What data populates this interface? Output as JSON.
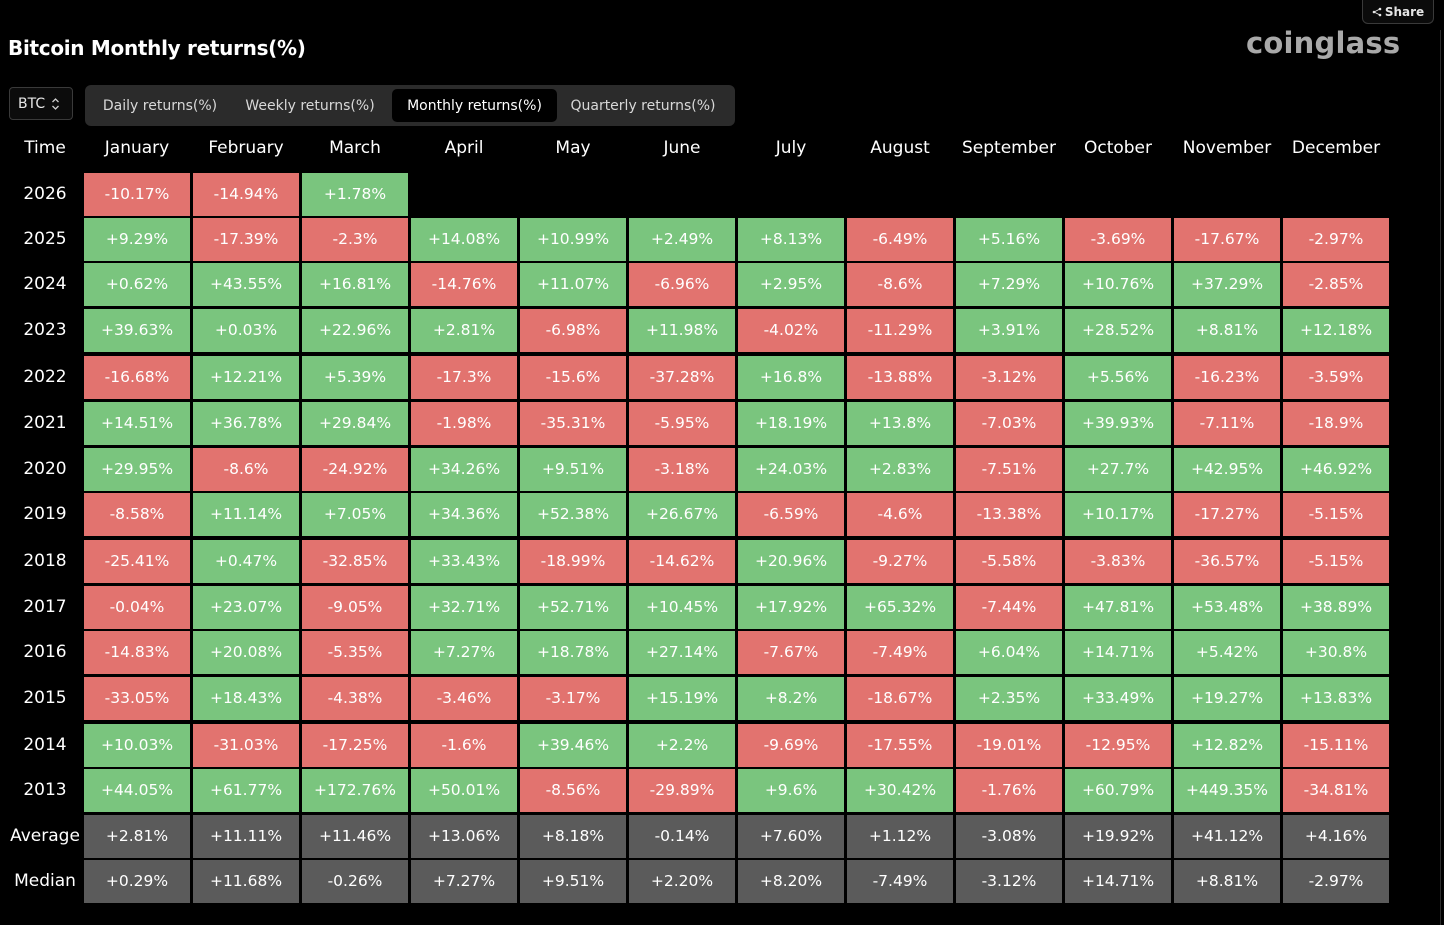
{
  "header": {
    "title": "Bitcoin Monthly returns(%)",
    "brand": "coinglass",
    "share_label": "Share"
  },
  "asset_select": {
    "value": "BTC"
  },
  "tabs": [
    {
      "label": "Daily returns(%)",
      "active": false
    },
    {
      "label": "Weekly returns(%)",
      "active": false
    },
    {
      "label": "Monthly returns(%)",
      "active": true
    },
    {
      "label": "Quarterly returns(%)",
      "active": false
    }
  ],
  "colors": {
    "positive": "#7ac57e",
    "negative": "#e2736f",
    "stat": "#5b5b5b",
    "background": "#000000"
  },
  "table": {
    "time_header": "Time",
    "months": [
      "January",
      "February",
      "March",
      "April",
      "May",
      "June",
      "July",
      "August",
      "September",
      "October",
      "November",
      "December"
    ],
    "rows": [
      {
        "label": "2026",
        "values": [
          "-10.17%",
          "-14.94%",
          "+1.78%",
          "",
          "",
          "",
          "",
          "",
          "",
          "",
          "",
          ""
        ]
      },
      {
        "label": "2025",
        "values": [
          "+9.29%",
          "-17.39%",
          "-2.3%",
          "+14.08%",
          "+10.99%",
          "+2.49%",
          "+8.13%",
          "-6.49%",
          "+5.16%",
          "-3.69%",
          "-17.67%",
          "-2.97%"
        ]
      },
      {
        "label": "2024",
        "values": [
          "+0.62%",
          "+43.55%",
          "+16.81%",
          "-14.76%",
          "+11.07%",
          "-6.96%",
          "+2.95%",
          "-8.6%",
          "+7.29%",
          "+10.76%",
          "+37.29%",
          "-2.85%"
        ]
      },
      {
        "label": "2023",
        "values": [
          "+39.63%",
          "+0.03%",
          "+22.96%",
          "+2.81%",
          "-6.98%",
          "+11.98%",
          "-4.02%",
          "-11.29%",
          "+3.91%",
          "+28.52%",
          "+8.81%",
          "+12.18%"
        ]
      },
      {
        "label": "2022",
        "values": [
          "-16.68%",
          "+12.21%",
          "+5.39%",
          "-17.3%",
          "-15.6%",
          "-37.28%",
          "+16.8%",
          "-13.88%",
          "-3.12%",
          "+5.56%",
          "-16.23%",
          "-3.59%"
        ]
      },
      {
        "label": "2021",
        "values": [
          "+14.51%",
          "+36.78%",
          "+29.84%",
          "-1.98%",
          "-35.31%",
          "-5.95%",
          "+18.19%",
          "+13.8%",
          "-7.03%",
          "+39.93%",
          "-7.11%",
          "-18.9%"
        ]
      },
      {
        "label": "2020",
        "values": [
          "+29.95%",
          "-8.6%",
          "-24.92%",
          "+34.26%",
          "+9.51%",
          "-3.18%",
          "+24.03%",
          "+2.83%",
          "-7.51%",
          "+27.7%",
          "+42.95%",
          "+46.92%"
        ]
      },
      {
        "label": "2019",
        "values": [
          "-8.58%",
          "+11.14%",
          "+7.05%",
          "+34.36%",
          "+52.38%",
          "+26.67%",
          "-6.59%",
          "-4.6%",
          "-13.38%",
          "+10.17%",
          "-17.27%",
          "-5.15%"
        ]
      },
      {
        "label": "2018",
        "values": [
          "-25.41%",
          "+0.47%",
          "-32.85%",
          "+33.43%",
          "-18.99%",
          "-14.62%",
          "+20.96%",
          "-9.27%",
          "-5.58%",
          "-3.83%",
          "-36.57%",
          "-5.15%"
        ]
      },
      {
        "label": "2017",
        "values": [
          "-0.04%",
          "+23.07%",
          "-9.05%",
          "+32.71%",
          "+52.71%",
          "+10.45%",
          "+17.92%",
          "+65.32%",
          "-7.44%",
          "+47.81%",
          "+53.48%",
          "+38.89%"
        ]
      },
      {
        "label": "2016",
        "values": [
          "-14.83%",
          "+20.08%",
          "-5.35%",
          "+7.27%",
          "+18.78%",
          "+27.14%",
          "-7.67%",
          "-7.49%",
          "+6.04%",
          "+14.71%",
          "+5.42%",
          "+30.8%"
        ]
      },
      {
        "label": "2015",
        "values": [
          "-33.05%",
          "+18.43%",
          "-4.38%",
          "-3.46%",
          "-3.17%",
          "+15.19%",
          "+8.2%",
          "-18.67%",
          "+2.35%",
          "+33.49%",
          "+19.27%",
          "+13.83%"
        ]
      },
      {
        "label": "2014",
        "values": [
          "+10.03%",
          "-31.03%",
          "-17.25%",
          "-1.6%",
          "+39.46%",
          "+2.2%",
          "-9.69%",
          "-17.55%",
          "-19.01%",
          "-12.95%",
          "+12.82%",
          "-15.11%"
        ]
      },
      {
        "label": "2013",
        "values": [
          "+44.05%",
          "+61.77%",
          "+172.76%",
          "+50.01%",
          "-8.56%",
          "-29.89%",
          "+9.6%",
          "+30.42%",
          "-1.76%",
          "+60.79%",
          "+449.35%",
          "-34.81%"
        ]
      }
    ],
    "stats": [
      {
        "label": "Average",
        "values": [
          "+2.81%",
          "+11.11%",
          "+11.46%",
          "+13.06%",
          "+8.18%",
          "-0.14%",
          "+7.60%",
          "+1.12%",
          "-3.08%",
          "+19.92%",
          "+41.12%",
          "+4.16%"
        ]
      },
      {
        "label": "Median",
        "values": [
          "+0.29%",
          "+11.68%",
          "-0.26%",
          "+7.27%",
          "+9.51%",
          "+2.20%",
          "+8.20%",
          "-7.49%",
          "-3.12%",
          "+14.71%",
          "+8.81%",
          "-2.97%"
        ]
      }
    ]
  }
}
